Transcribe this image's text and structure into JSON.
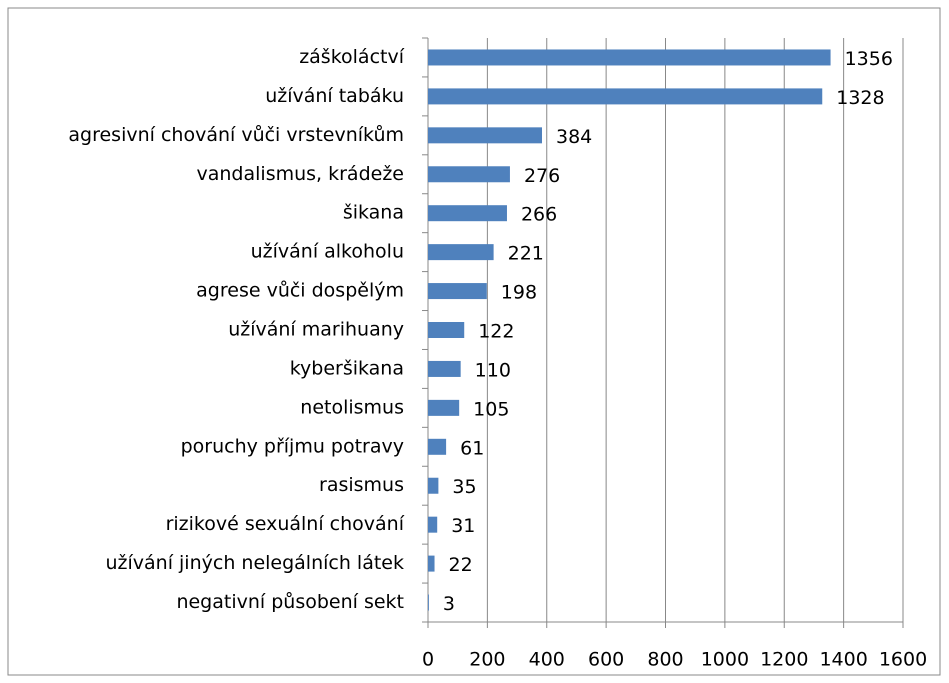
{
  "chart_data": {
    "type": "bar",
    "orientation": "horizontal",
    "categories": [
      "záškoláctví",
      "užívání tabáku",
      "agresivní chování vůči vrstevníkům",
      "vandalismus, krádeže",
      "šikana",
      "užívání alkoholu",
      "agrese vůči dospělým",
      "užívání marihuany",
      "kyberšikana",
      "netolismus",
      "poruchy příjmu potravy",
      "rasismus",
      "rizikové sexuální chování",
      "užívání jiných nelegálních látek",
      "negativní působení sekt"
    ],
    "values": [
      1356,
      1328,
      384,
      276,
      266,
      221,
      198,
      122,
      110,
      105,
      61,
      35,
      31,
      22,
      3
    ],
    "color": "#4f81bd",
    "xlim": [
      0,
      1600
    ],
    "xticks": [
      0,
      200,
      400,
      600,
      800,
      1000,
      1200,
      1400,
      1600
    ],
    "grid": true
  }
}
